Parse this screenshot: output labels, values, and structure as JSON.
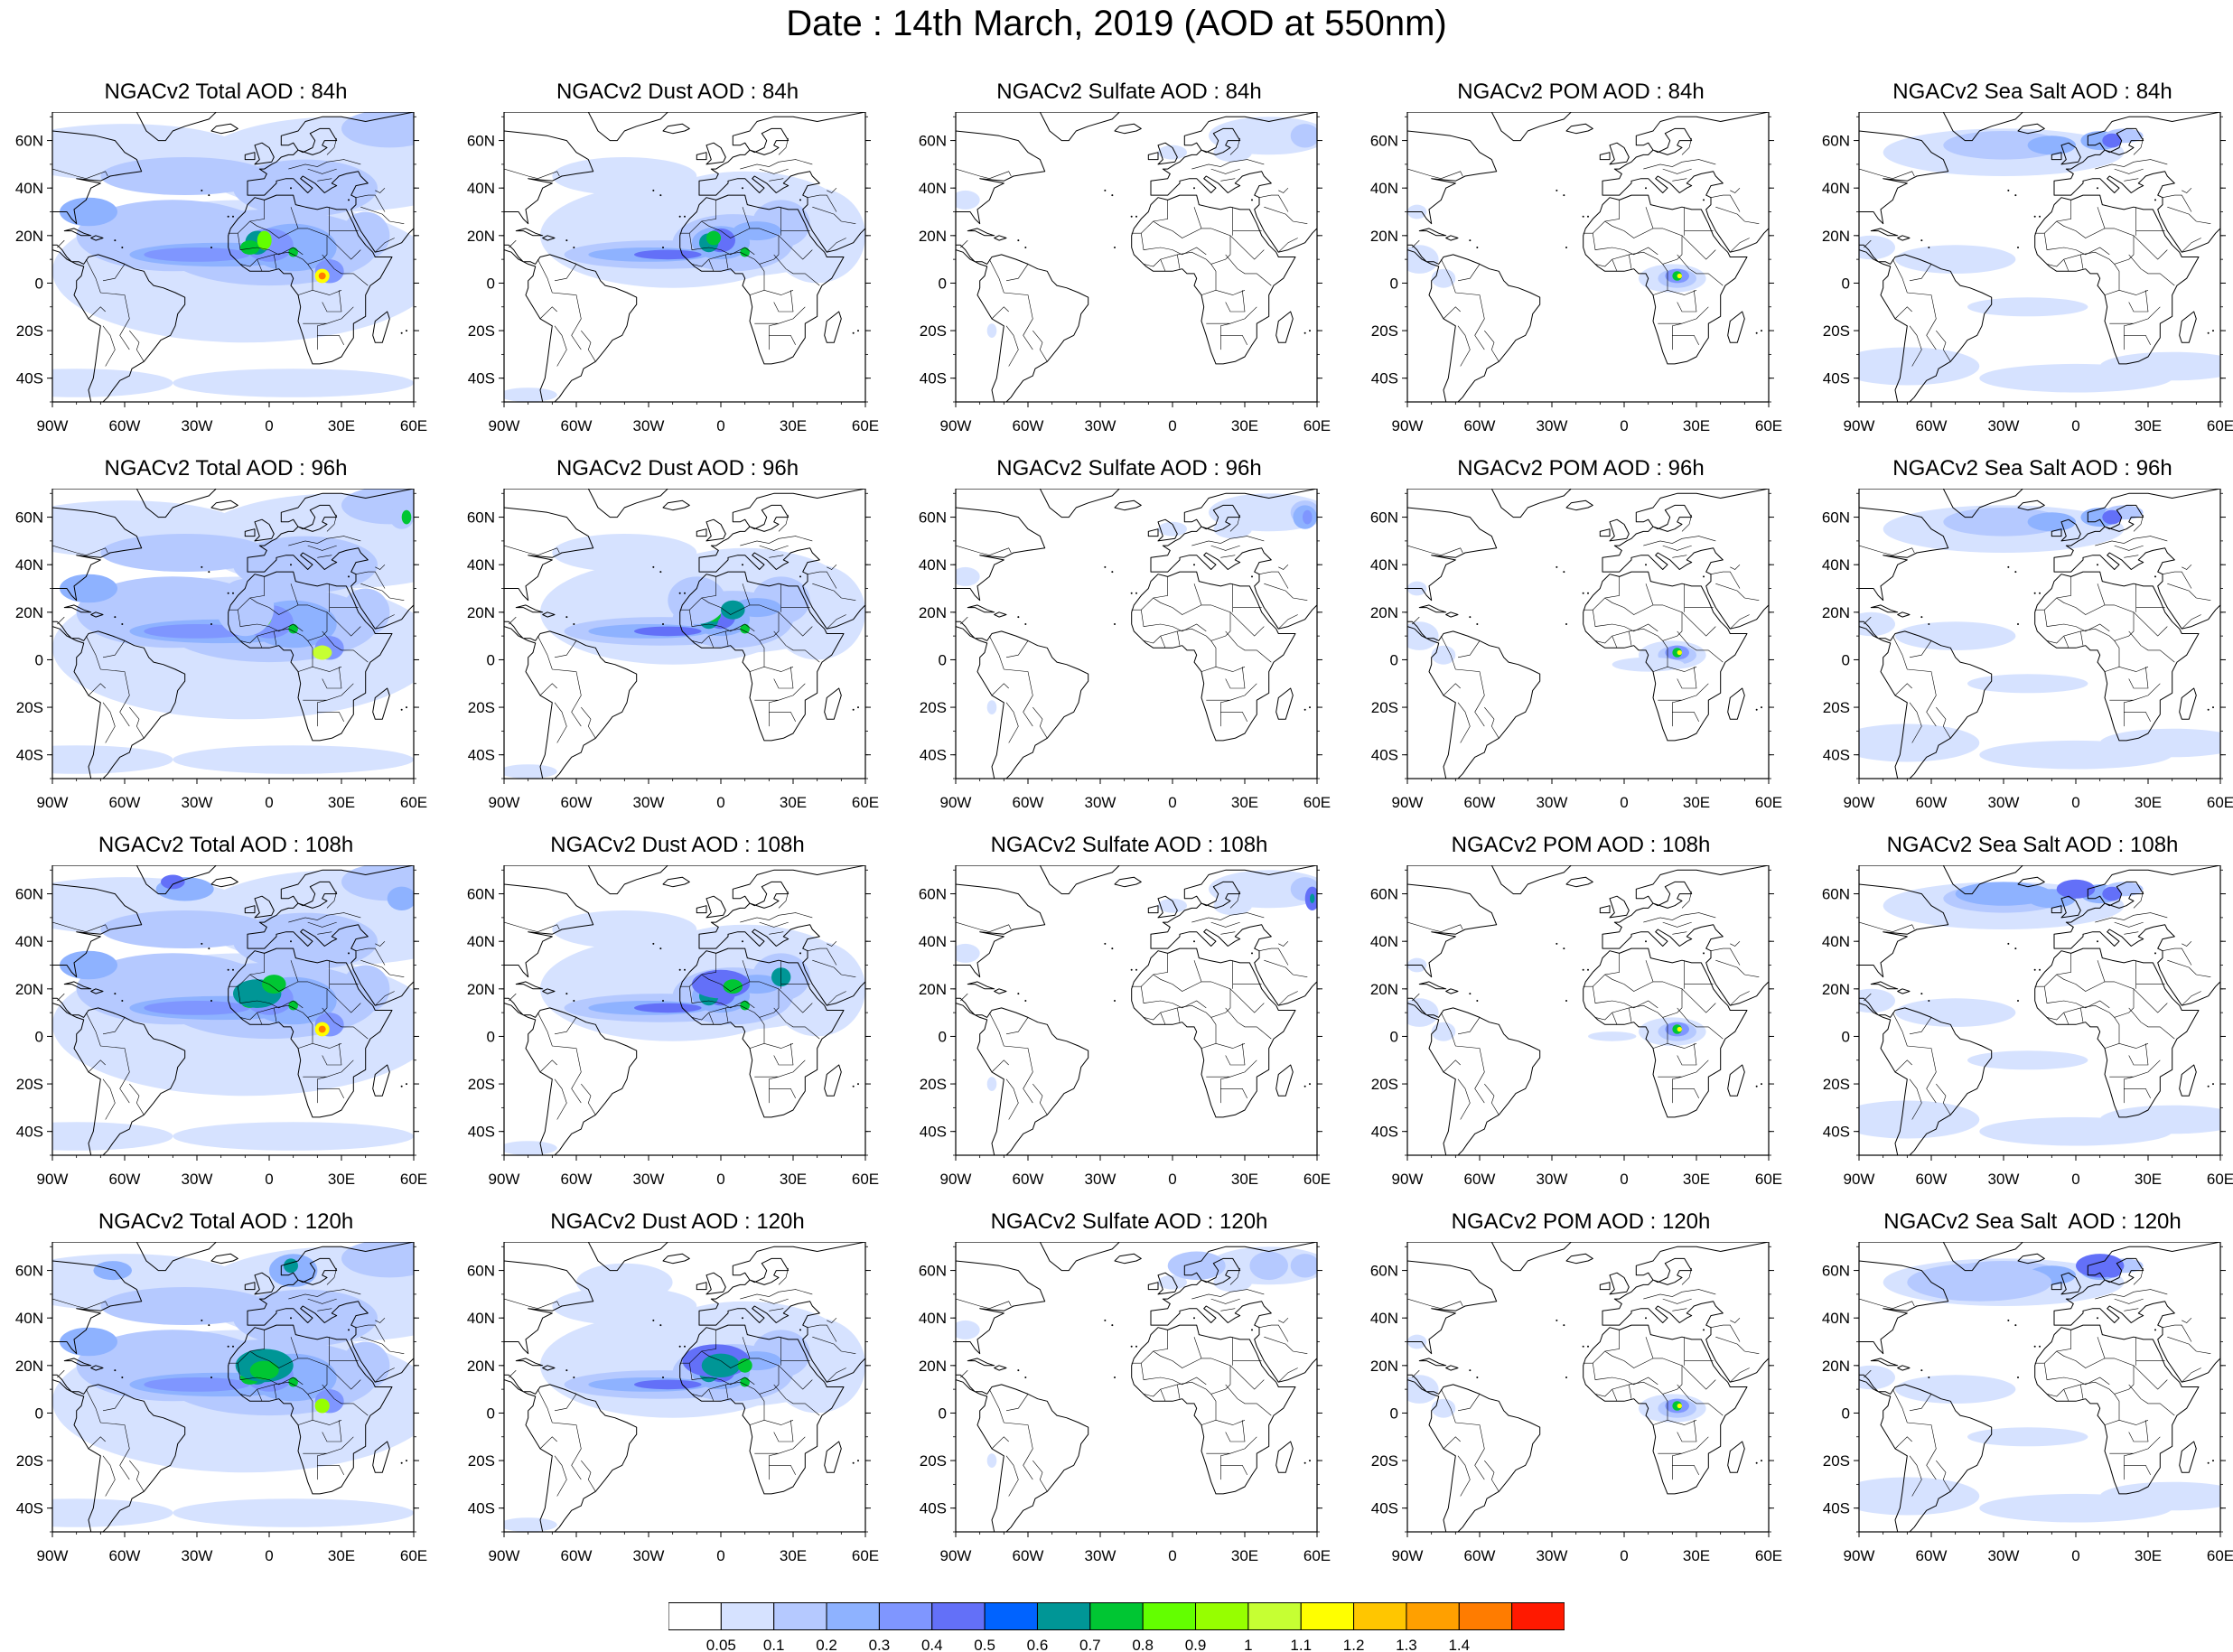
{
  "title": "Date : 14th March, 2019 (AOD at 550nm)",
  "axes": {
    "lat_labels": [
      "60N",
      "40N",
      "20N",
      "0",
      "20S",
      "40S"
    ],
    "lon_labels": [
      "90W",
      "60W",
      "30W",
      "0",
      "30E",
      "60E"
    ]
  },
  "panels": [
    {
      "title": "NGACv2 Total AOD : 84h",
      "species": "total",
      "hour": 84
    },
    {
      "title": "NGACv2 Dust AOD : 84h",
      "species": "dust",
      "hour": 84
    },
    {
      "title": "NGACv2 Sulfate AOD : 84h",
      "species": "sulfate",
      "hour": 84
    },
    {
      "title": "NGACv2 POM AOD : 84h",
      "species": "pom",
      "hour": 84
    },
    {
      "title": "NGACv2 Sea Salt AOD : 84h",
      "species": "seasalt",
      "hour": 84
    },
    {
      "title": "NGACv2 Total AOD : 96h",
      "species": "total",
      "hour": 96
    },
    {
      "title": "NGACv2 Dust AOD : 96h",
      "species": "dust",
      "hour": 96
    },
    {
      "title": "NGACv2 Sulfate AOD : 96h",
      "species": "sulfate",
      "hour": 96
    },
    {
      "title": "NGACv2 POM AOD : 96h",
      "species": "pom",
      "hour": 96
    },
    {
      "title": "NGACv2 Sea Salt AOD : 96h",
      "species": "seasalt",
      "hour": 96
    },
    {
      "title": "NGACv2 Total AOD : 108h",
      "species": "total",
      "hour": 108
    },
    {
      "title": "NGACv2 Dust AOD : 108h",
      "species": "dust",
      "hour": 108
    },
    {
      "title": "NGACv2 Sulfate AOD : 108h",
      "species": "sulfate",
      "hour": 108
    },
    {
      "title": "NGACv2 POM AOD : 108h",
      "species": "pom",
      "hour": 108
    },
    {
      "title": "NGACv2 Sea Salt AOD : 108h",
      "species": "seasalt",
      "hour": 108
    },
    {
      "title": "NGACv2 Total AOD : 120h",
      "species": "total",
      "hour": 120
    },
    {
      "title": "NGACv2 Dust AOD : 120h",
      "species": "dust",
      "hour": 120
    },
    {
      "title": "NGACv2 Sulfate AOD : 120h",
      "species": "sulfate",
      "hour": 120
    },
    {
      "title": "NGACv2 POM AOD : 120h",
      "species": "pom",
      "hour": 120
    },
    {
      "title": "NGACv2 Sea Salt  AOD : 120h",
      "species": "seasalt",
      "hour": 120
    }
  ],
  "colorbar": {
    "labels": [
      "0.05",
      "0.1",
      "0.2",
      "0.3",
      "0.4",
      "0.5",
      "0.6",
      "0.7",
      "0.8",
      "0.9",
      "1",
      "1.1",
      "1.2",
      "1.3",
      "1.4"
    ],
    "colors": [
      "#ffffff",
      "#d6e2ff",
      "#b5c9ff",
      "#8eb2ff",
      "#7f96ff",
      "#6370f8",
      "#0063ff",
      "#009696",
      "#00c633",
      "#63ff00",
      "#96ff00",
      "#c6ff33",
      "#ffff00",
      "#ffc600",
      "#ffa000",
      "#ff7c00",
      "#ff1900"
    ]
  }
}
